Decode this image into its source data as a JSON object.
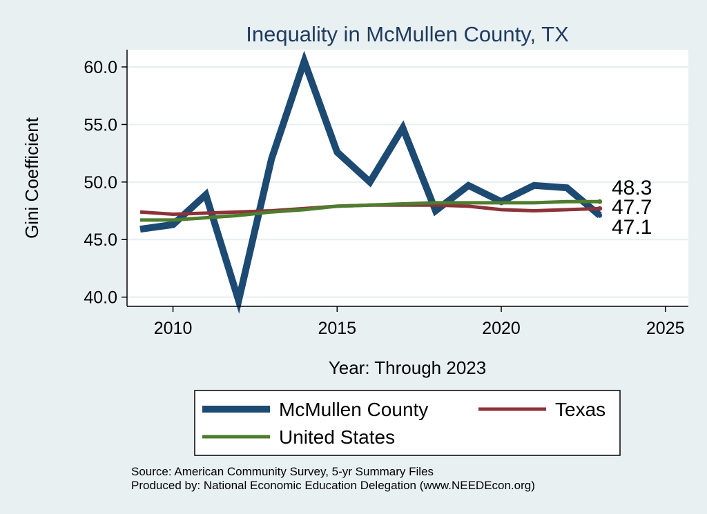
{
  "chart_data": {
    "type": "line",
    "title": "Inequality in McMullen County, TX",
    "xlabel": "Year: Through 2023",
    "ylabel": "Gini Coefficient",
    "xlim": [
      2008.6,
      2025.7
    ],
    "ylim": [
      39.2,
      61.5
    ],
    "x_ticks": [
      2010,
      2015,
      2020,
      2025
    ],
    "y_ticks": [
      40.0,
      45.0,
      50.0,
      55.0,
      60.0
    ],
    "y_tick_labels": [
      "40.0",
      "45.0",
      "50.0",
      "55.0",
      "60.0"
    ],
    "x": [
      2009,
      2010,
      2011,
      2012,
      2013,
      2014,
      2015,
      2016,
      2017,
      2018,
      2019,
      2020,
      2021,
      2022,
      2023
    ],
    "series": [
      {
        "name": "McMullen County",
        "color": "#1c4a72",
        "width": "thick",
        "values": [
          45.9,
          46.3,
          48.9,
          39.7,
          52.0,
          60.5,
          52.6,
          50.0,
          54.7,
          47.5,
          49.7,
          48.3,
          49.7,
          49.5,
          47.1
        ]
      },
      {
        "name": "Texas",
        "color": "#8c3339",
        "width": "medium",
        "values": [
          47.4,
          47.2,
          47.3,
          47.4,
          47.5,
          47.7,
          47.9,
          48.0,
          48.0,
          48.0,
          47.9,
          47.6,
          47.5,
          47.6,
          47.7
        ]
      },
      {
        "name": "United States",
        "color": "#4e7d2f",
        "width": "medium",
        "values": [
          46.7,
          46.7,
          46.9,
          47.1,
          47.4,
          47.6,
          47.9,
          48.0,
          48.1,
          48.2,
          48.2,
          48.2,
          48.2,
          48.3,
          48.3
        ]
      }
    ],
    "end_labels": [
      "48.3",
      "47.7",
      "47.1"
    ],
    "legend": {
      "placement": "bottom",
      "entries": [
        "McMullen County",
        "Texas",
        "United States"
      ]
    },
    "notes": [
      "Source: American Community Survey, 5-yr Summary Files",
      "Produced by: National Economic Education Delegation (www.NEEDEcon.org)"
    ]
  }
}
